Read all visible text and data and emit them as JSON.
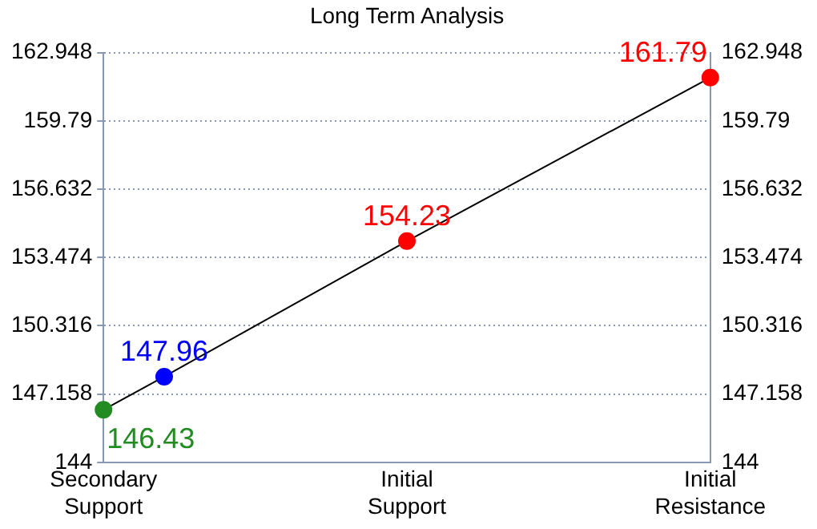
{
  "chart_data": {
    "type": "line",
    "title": "Long Term Analysis",
    "categories": [
      "Secondary Support",
      null,
      null,
      null,
      null,
      "Initial Support",
      null,
      null,
      null,
      null,
      "Initial Resistance"
    ],
    "series": [
      {
        "color": "#000000",
        "colors": [
          "#228b22",
          "#0000ff",
          null,
          null,
          null,
          "#ff0000",
          null,
          null,
          null,
          null,
          "#ff0000"
        ],
        "values": [
          146.43,
          147.96,
          null,
          null,
          null,
          154.23,
          null,
          null,
          null,
          null,
          161.79
        ]
      }
    ],
    "ylim": [
      144,
      162.948
    ],
    "yticks": [
      144,
      147.158,
      150.316,
      153.474,
      156.632,
      159.79,
      162.948
    ],
    "y2lim": [
      144,
      162.948
    ],
    "y2ticks": [
      144,
      147.158,
      150.316,
      153.474,
      156.632,
      159.79,
      162.948
    ],
    "grid": "y",
    "marker": "circle",
    "data_labels": true,
    "legend": false
  }
}
